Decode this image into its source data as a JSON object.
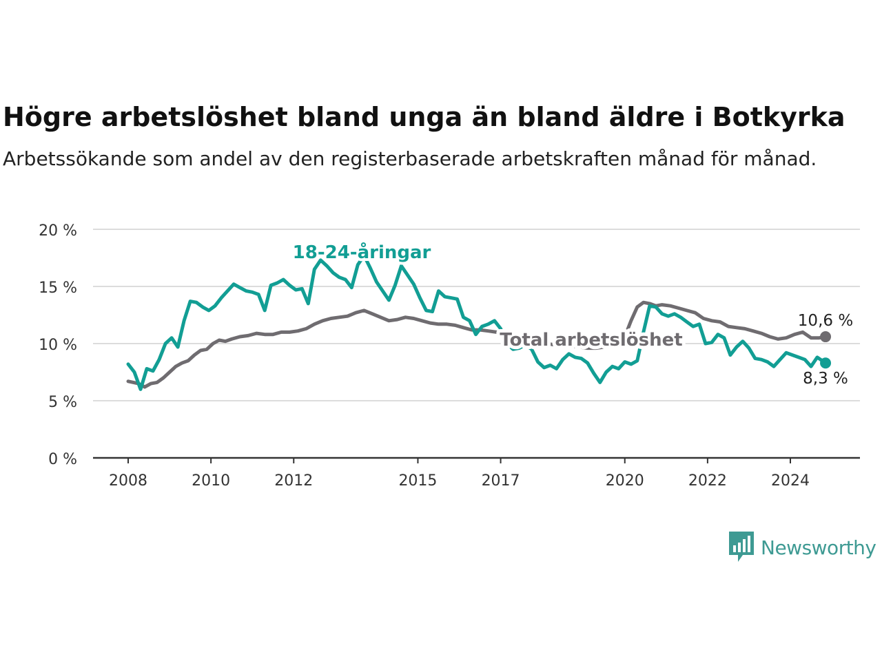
{
  "title": "Högre arbetslöshet bland unga än bland äldre i Botkyrka",
  "subtitle": "Arbetssökande som andel av den registerbaserade arbetskraften månad för månad.",
  "brand": {
    "name": "Newsworthy",
    "icon": "bar-chart-speech-bubble-icon",
    "color": "#3e9a93"
  },
  "chart_data": {
    "type": "line",
    "x_unit": "year",
    "y_unit": "%",
    "ylim": [
      0,
      20
    ],
    "y_ticks": [
      0,
      5,
      10,
      15,
      20
    ],
    "y_tick_labels": [
      "0 %",
      "5 %",
      "10 %",
      "15 %",
      "20 %"
    ],
    "x_ticks": [
      2008,
      2010,
      2012,
      2015,
      2017,
      2020,
      2022,
      2024
    ],
    "grid": "horizontal",
    "series": [
      {
        "name": "Total arbetslöshet",
        "color": "#6f6c70",
        "end_label": "10,6 %",
        "x": [
          2008.0,
          2008.25,
          2008.4,
          2008.55,
          2008.7,
          2008.85,
          2009.0,
          2009.15,
          2009.3,
          2009.45,
          2009.6,
          2009.75,
          2009.9,
          2010.05,
          2010.2,
          2010.35,
          2010.5,
          2010.7,
          2010.9,
          2011.1,
          2011.3,
          2011.5,
          2011.7,
          2011.9,
          2012.1,
          2012.3,
          2012.5,
          2012.7,
          2012.9,
          2013.1,
          2013.3,
          2013.5,
          2013.7,
          2013.9,
          2014.1,
          2014.3,
          2014.5,
          2014.7,
          2014.9,
          2015.1,
          2015.3,
          2015.5,
          2015.7,
          2015.9,
          2016.1,
          2016.3,
          2016.5,
          2016.7,
          2016.9,
          2017.1,
          2017.3,
          2017.5,
          2017.7,
          2017.9,
          2018.1,
          2018.3,
          2018.5,
          2018.7,
          2018.9,
          2019.1,
          2019.3,
          2019.5,
          2019.7,
          2019.9,
          2020.0,
          2020.15,
          2020.3,
          2020.45,
          2020.6,
          2020.75,
          2020.9,
          2021.1,
          2021.3,
          2021.5,
          2021.7,
          2021.9,
          2022.1,
          2022.3,
          2022.5,
          2022.7,
          2022.9,
          2023.1,
          2023.3,
          2023.5,
          2023.7,
          2023.9,
          2024.1,
          2024.3,
          2024.5,
          2024.7,
          2024.85
        ],
        "y": [
          6.7,
          6.5,
          6.2,
          6.5,
          6.6,
          7.0,
          7.5,
          8.0,
          8.3,
          8.5,
          9.0,
          9.4,
          9.5,
          10.0,
          10.3,
          10.2,
          10.4,
          10.6,
          10.7,
          10.9,
          10.8,
          10.8,
          11.0,
          11.0,
          11.1,
          11.3,
          11.7,
          12.0,
          12.2,
          12.3,
          12.4,
          12.7,
          12.9,
          12.6,
          12.3,
          12.0,
          12.1,
          12.3,
          12.2,
          12.0,
          11.8,
          11.7,
          11.7,
          11.6,
          11.4,
          11.2,
          11.2,
          11.1,
          11.0,
          10.7,
          10.5,
          10.3,
          10.2,
          10.1,
          10.0,
          9.9,
          9.8,
          9.8,
          9.7,
          9.6,
          9.6,
          9.7,
          9.8,
          10.0,
          10.6,
          12.0,
          13.2,
          13.6,
          13.5,
          13.3,
          13.4,
          13.3,
          13.1,
          12.9,
          12.7,
          12.2,
          12.0,
          11.9,
          11.5,
          11.4,
          11.3,
          11.1,
          10.9,
          10.6,
          10.4,
          10.5,
          10.8,
          11.0,
          10.5,
          10.5,
          10.6
        ]
      },
      {
        "name": "18-24-åringar",
        "color": "#129e94",
        "end_label": "8,3 %",
        "x": [
          2008.0,
          2008.15,
          2008.3,
          2008.45,
          2008.6,
          2008.75,
          2008.9,
          2009.05,
          2009.2,
          2009.35,
          2009.5,
          2009.65,
          2009.8,
          2009.95,
          2010.1,
          2010.25,
          2010.4,
          2010.55,
          2010.7,
          2010.85,
          2011.0,
          2011.15,
          2011.3,
          2011.45,
          2011.6,
          2011.75,
          2011.9,
          2012.05,
          2012.2,
          2012.35,
          2012.5,
          2012.65,
          2012.8,
          2012.95,
          2013.1,
          2013.25,
          2013.4,
          2013.55,
          2013.7,
          2013.85,
          2014.0,
          2014.15,
          2014.3,
          2014.45,
          2014.6,
          2014.75,
          2014.9,
          2015.05,
          2015.2,
          2015.35,
          2015.5,
          2015.65,
          2015.8,
          2015.95,
          2016.1,
          2016.25,
          2016.4,
          2016.55,
          2016.7,
          2016.85,
          2017.0,
          2017.15,
          2017.3,
          2017.45,
          2017.6,
          2017.75,
          2017.9,
          2018.05,
          2018.2,
          2018.35,
          2018.5,
          2018.65,
          2018.8,
          2018.95,
          2019.1,
          2019.25,
          2019.4,
          2019.55,
          2019.7,
          2019.85,
          2020.0,
          2020.15,
          2020.3,
          2020.45,
          2020.6,
          2020.75,
          2020.9,
          2021.05,
          2021.2,
          2021.35,
          2021.5,
          2021.65,
          2021.8,
          2021.95,
          2022.1,
          2022.25,
          2022.4,
          2022.55,
          2022.7,
          2022.85,
          2023.0,
          2023.15,
          2023.3,
          2023.45,
          2023.6,
          2023.75,
          2023.9,
          2024.05,
          2024.2,
          2024.35,
          2024.5,
          2024.65,
          2024.85
        ],
        "y": [
          8.2,
          7.5,
          6.0,
          7.8,
          7.6,
          8.6,
          10.0,
          10.5,
          9.7,
          12.0,
          13.7,
          13.6,
          13.2,
          12.9,
          13.3,
          14.0,
          14.6,
          15.2,
          14.9,
          14.6,
          14.5,
          14.3,
          12.9,
          15.1,
          15.3,
          15.6,
          15.1,
          14.7,
          14.8,
          13.5,
          16.5,
          17.3,
          16.8,
          16.2,
          15.8,
          15.6,
          14.9,
          16.9,
          17.7,
          16.6,
          15.4,
          14.6,
          13.8,
          15.1,
          16.8,
          16.0,
          15.2,
          14.0,
          12.9,
          12.8,
          14.6,
          14.1,
          14.0,
          13.9,
          12.3,
          12.0,
          10.8,
          11.5,
          11.7,
          12.0,
          11.3,
          10.0,
          9.5,
          9.6,
          9.9,
          9.5,
          8.4,
          7.9,
          8.1,
          7.8,
          8.6,
          9.1,
          8.8,
          8.7,
          8.3,
          7.4,
          6.6,
          7.5,
          8.0,
          7.8,
          8.4,
          8.2,
          8.5,
          11.0,
          13.3,
          13.2,
          12.6,
          12.4,
          12.6,
          12.3,
          11.9,
          11.5,
          11.7,
          10.0,
          10.1,
          10.8,
          10.5,
          9.0,
          9.7,
          10.2,
          9.6,
          8.7,
          8.6,
          8.4,
          8.0,
          8.6,
          9.2,
          9.0,
          8.8,
          8.6,
          8.0,
          8.8,
          8.3
        ]
      }
    ]
  }
}
